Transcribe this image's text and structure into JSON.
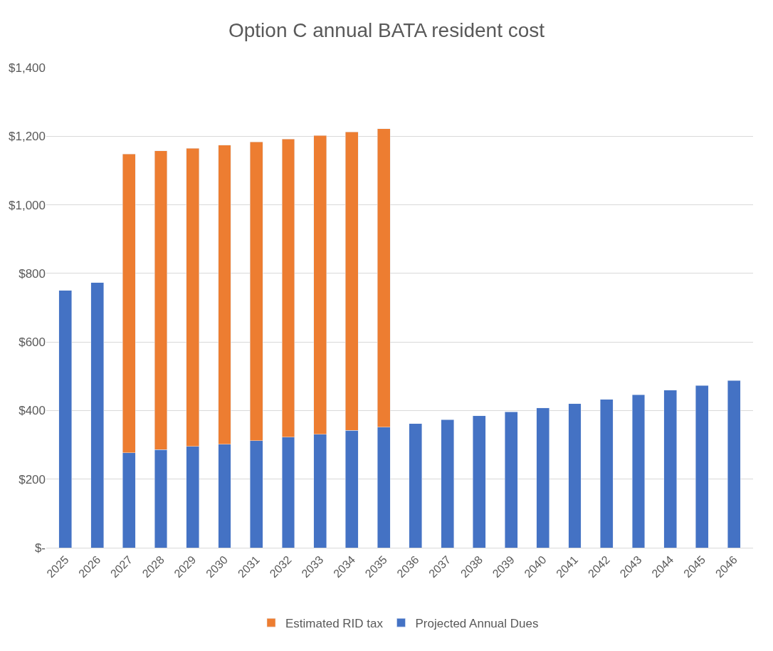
{
  "chart_data": {
    "type": "bar",
    "title": "Option C annual BATA resident cost",
    "stacked": true,
    "categories": [
      "2025",
      "2026",
      "2027",
      "2028",
      "2029",
      "2030",
      "2031",
      "2032",
      "2033",
      "2034",
      "2035",
      "2036",
      "2037",
      "2038",
      "2039",
      "2040",
      "2041",
      "2042",
      "2043",
      "2044",
      "2045",
      "2046"
    ],
    "series": [
      {
        "name": "Projected Annual Dues",
        "color": "#4472c4",
        "values": [
          750,
          773,
          277,
          286,
          295,
          302,
          312,
          322,
          331,
          342,
          352,
          362,
          373,
          385,
          396,
          408,
          420,
          433,
          446,
          460,
          473,
          488
        ]
      },
      {
        "name": "Estimated RID tax",
        "color": "#ed7d31",
        "values": [
          null,
          null,
          871,
          871,
          870,
          872,
          871,
          870,
          871,
          871,
          870,
          null,
          null,
          null,
          null,
          null,
          null,
          null,
          null,
          null,
          null,
          null
        ]
      }
    ],
    "ylim": [
      0,
      1400
    ],
    "yticks": [
      {
        "value": 0,
        "label": "$-"
      },
      {
        "value": 200,
        "label": "$200"
      },
      {
        "value": 400,
        "label": "$400"
      },
      {
        "value": 600,
        "label": "$600"
      },
      {
        "value": 800,
        "label": "$800"
      },
      {
        "value": 1000,
        "label": "$1,000"
      },
      {
        "value": 1200,
        "label": "$1,200"
      },
      {
        "value": 1400,
        "label": "$1,400"
      }
    ],
    "grid": "y",
    "legend": "bottom"
  }
}
